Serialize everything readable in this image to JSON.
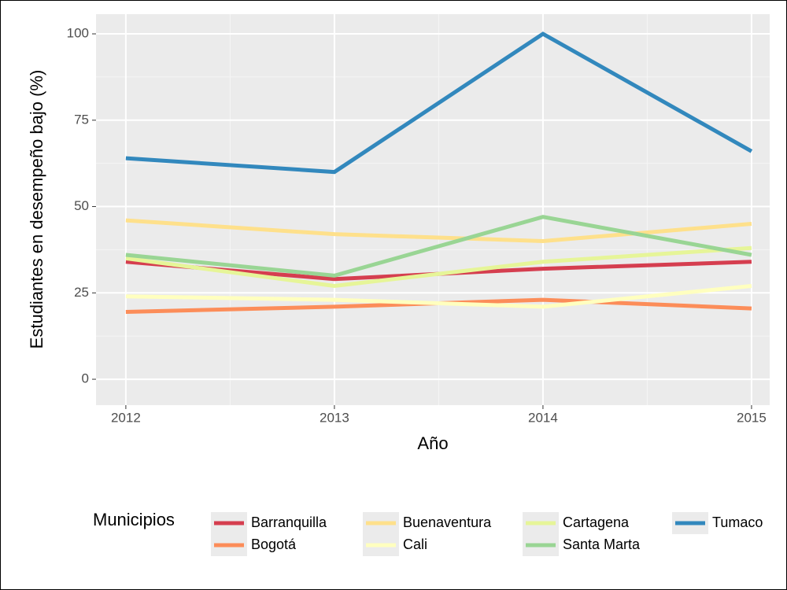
{
  "chart_data": {
    "type": "line",
    "x_label": "Año",
    "y_label": "Estudiantes en desempeño bajo (%)",
    "legend_title": "Municipios",
    "legend_position": "bottom",
    "grid": true,
    "x": [
      2012,
      2013,
      2014,
      2015
    ],
    "xlim": [
      2011.857,
      2015.087
    ],
    "xticks": [
      2012,
      2013,
      2014,
      2015
    ],
    "ylim": [
      -7.5,
      105.7
    ],
    "yticks": [
      0,
      25,
      50,
      75,
      100
    ],
    "series": [
      {
        "name": "Barranquilla",
        "color": "#d53e4f",
        "values": [
          34,
          29,
          32,
          34
        ]
      },
      {
        "name": "Bogotá",
        "color": "#fc8d59",
        "values": [
          19.5,
          21,
          23,
          20.5
        ]
      },
      {
        "name": "Buenaventura",
        "color": "#fee08b",
        "values": [
          46,
          42,
          40,
          45
        ]
      },
      {
        "name": "Cali",
        "color": "#ffffbf",
        "values": [
          24,
          23,
          21,
          27
        ]
      },
      {
        "name": "Cartagena",
        "color": "#e6f598",
        "values": [
          35,
          27,
          34,
          38
        ]
      },
      {
        "name": "Santa Marta",
        "color": "#99d594",
        "values": [
          36,
          30,
          47,
          36
        ]
      },
      {
        "name": "Tumaco",
        "color": "#3288bd",
        "values": [
          64,
          60,
          100,
          66
        ]
      }
    ]
  }
}
